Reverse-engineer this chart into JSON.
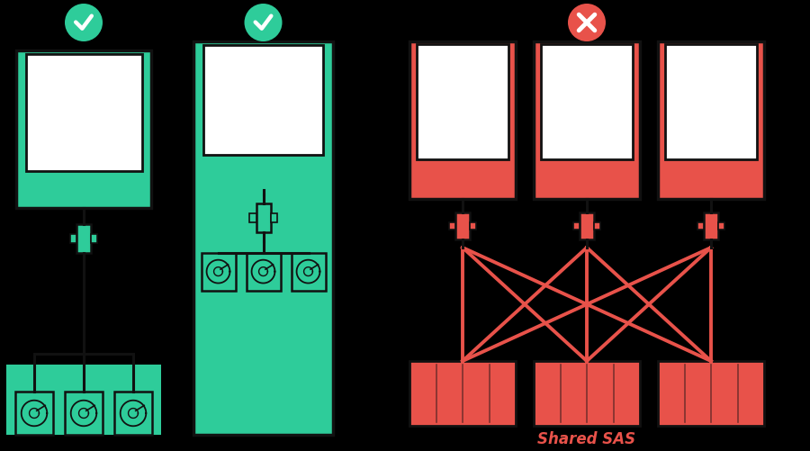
{
  "bg_color": "#000000",
  "teal_color": "#2ECC9A",
  "red_color": "#E8524A",
  "white_color": "#FFFFFF",
  "black_color": "#111111",
  "win_color": "#555555",
  "shared_sas_label": "Shared SAS",
  "shared_sas_color": "#E8524A"
}
